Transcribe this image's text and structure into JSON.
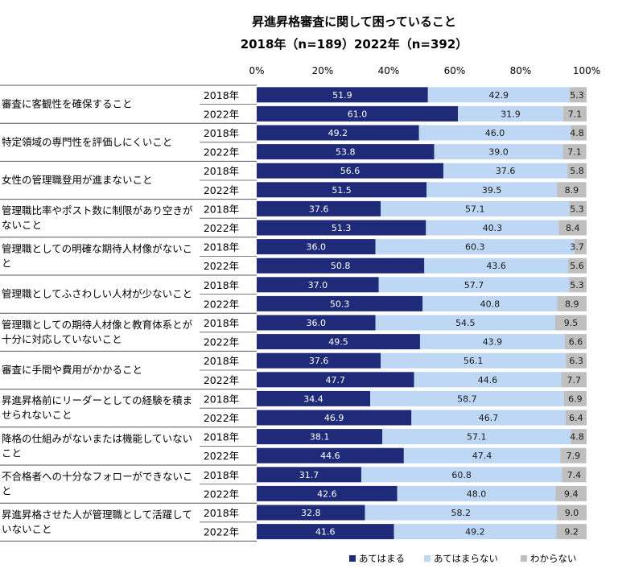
{
  "chart_data": {
    "type": "bar",
    "stacked": true,
    "orientation": "horizontal",
    "title": "昇進昇格審査に関して困っていること",
    "subtitle": "2018年（n=189）2022年（n=392）",
    "xlim": [
      0,
      100
    ],
    "x_ticks": [
      "0%",
      "20%",
      "40%",
      "60%",
      "80%",
      "100%"
    ],
    "legend_position": "bottom",
    "series": [
      {
        "name": "あてはまる",
        "color": "#1f2a78"
      },
      {
        "name": "あてはまらない",
        "color": "#bdd7f5"
      },
      {
        "name": "わからない",
        "color": "#bfbfbf"
      }
    ],
    "categories": [
      {
        "label": "審査に客観性を確保すること",
        "rows": [
          {
            "year": "2018年",
            "values": [
              51.9,
              42.9,
              5.3
            ]
          },
          {
            "year": "2022年",
            "values": [
              61.0,
              31.9,
              7.1
            ]
          }
        ]
      },
      {
        "label": "特定領域の専門性を評価しにくいこと",
        "rows": [
          {
            "year": "2018年",
            "values": [
              49.2,
              46.0,
              4.8
            ]
          },
          {
            "year": "2022年",
            "values": [
              53.8,
              39.0,
              7.1
            ]
          }
        ]
      },
      {
        "label": "女性の管理職登用が進まないこと",
        "rows": [
          {
            "year": "2018年",
            "values": [
              56.6,
              37.6,
              5.8
            ]
          },
          {
            "year": "2022年",
            "values": [
              51.5,
              39.5,
              8.9
            ]
          }
        ]
      },
      {
        "label": "管理職比率やポスト数に制限があり空きがないこと",
        "rows": [
          {
            "year": "2018年",
            "values": [
              37.6,
              57.1,
              5.3
            ]
          },
          {
            "year": "2022年",
            "values": [
              51.3,
              40.3,
              8.4
            ]
          }
        ]
      },
      {
        "label": "管理職としての明確な期待人材像がないこと",
        "rows": [
          {
            "year": "2018年",
            "values": [
              36.0,
              60.3,
              3.7
            ]
          },
          {
            "year": "2022年",
            "values": [
              50.8,
              43.6,
              5.6
            ]
          }
        ]
      },
      {
        "label": "管理職としてふさわしい人材が少ないこと",
        "rows": [
          {
            "year": "2018年",
            "values": [
              37.0,
              57.7,
              5.3
            ]
          },
          {
            "year": "2022年",
            "values": [
              50.3,
              40.8,
              8.9
            ]
          }
        ]
      },
      {
        "label": "管理職としての期待人材像と教育体系とが十分に対応していないこと",
        "rows": [
          {
            "year": "2018年",
            "values": [
              36.0,
              54.5,
              9.5
            ]
          },
          {
            "year": "2022年",
            "values": [
              49.5,
              43.9,
              6.6
            ]
          }
        ]
      },
      {
        "label": "審査に手間や費用がかかること",
        "rows": [
          {
            "year": "2018年",
            "values": [
              37.6,
              56.1,
              6.3
            ]
          },
          {
            "year": "2022年",
            "values": [
              47.7,
              44.6,
              7.7
            ]
          }
        ]
      },
      {
        "label": "昇進昇格前にリーダーとしての経験を積ませられないこと",
        "rows": [
          {
            "year": "2018年",
            "values": [
              34.4,
              58.7,
              6.9
            ]
          },
          {
            "year": "2022年",
            "values": [
              46.9,
              46.7,
              6.4
            ]
          }
        ]
      },
      {
        "label": "降格の仕組みがないまたは機能していないこと",
        "rows": [
          {
            "year": "2018年",
            "values": [
              38.1,
              57.1,
              4.8
            ]
          },
          {
            "year": "2022年",
            "values": [
              44.6,
              47.4,
              7.9
            ]
          }
        ]
      },
      {
        "label": "不合格者への十分なフォローができないこと",
        "rows": [
          {
            "year": "2018年",
            "values": [
              31.7,
              60.8,
              7.4
            ]
          },
          {
            "year": "2022年",
            "values": [
              42.6,
              48.0,
              9.4
            ]
          }
        ]
      },
      {
        "label": "昇進昇格させた人が管理職として活躍していないこと",
        "rows": [
          {
            "year": "2018年",
            "values": [
              32.8,
              58.2,
              9.0
            ]
          },
          {
            "year": "2022年",
            "values": [
              41.6,
              49.2,
              9.2
            ]
          }
        ]
      }
    ]
  }
}
